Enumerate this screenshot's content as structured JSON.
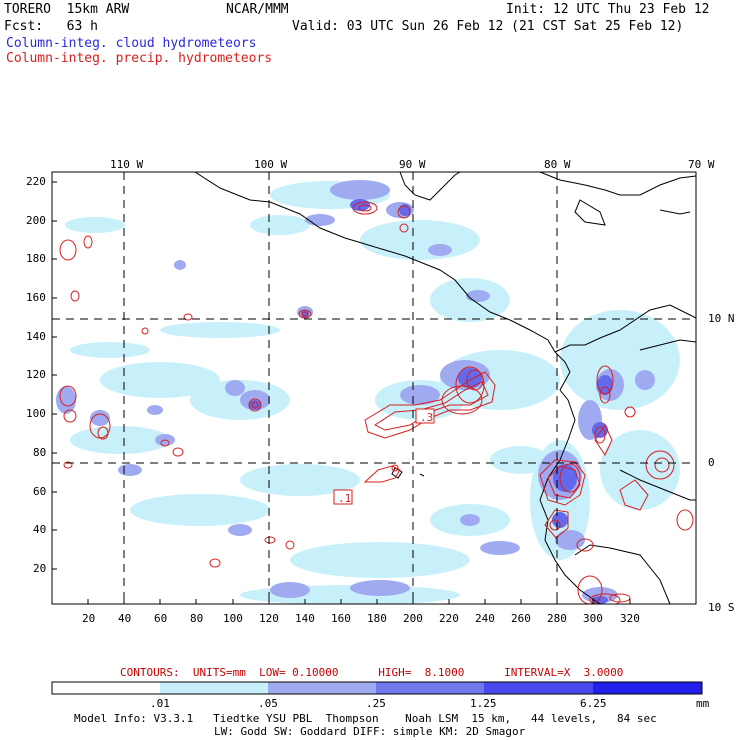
{
  "header": {
    "model": "TORERO  15km ARW",
    "org": "NCAR/MMM",
    "init": "Init: 12 UTC Thu 23 Feb 12",
    "fcst": "Fcst:   63 h",
    "valid": "Valid: 03 UTC Sun 26 Feb 12 (21 CST Sat 25 Feb 12)",
    "field1": "Column-integ. cloud hydrometeors",
    "field2": "Column-integ. precip. hydrometeors"
  },
  "axes": {
    "lon_labels": [
      "110 W",
      "100 W",
      "90 W",
      "80 W",
      "70 W"
    ],
    "lat_labels": [
      "10 N",
      "0",
      "10 S"
    ],
    "y_ticks": [
      "220",
      "200",
      "180",
      "160",
      "140",
      "120",
      "100",
      "80",
      "60",
      "40",
      "20"
    ],
    "x_ticks": [
      "20",
      "40",
      "60",
      "80",
      "100",
      "120",
      "140",
      "160",
      "180",
      "200",
      "220",
      "240",
      "260",
      "280",
      "300",
      "320"
    ]
  },
  "boxes": [
    ".1",
    ".3"
  ],
  "contours_line": {
    "label": "CONTOURS:  UNITS=mm  LOW= 0.10000      HIGH=  8.1000      INTERVAL=X  3.0000"
  },
  "colorbar": {
    "levels": [
      ".01",
      ".05",
      ".25",
      "1.25",
      "6.25"
    ],
    "unit": "mm",
    "colors": [
      "#ffffff",
      "#c8f0fa",
      "#a0aaf0",
      "#7478ee",
      "#4848ee",
      "#2020e8"
    ]
  },
  "footer": {
    "line1": "Model Info: V3.3.1   Tiedtke YSU PBL  Thompson    Noah LSM  15 km,   44 levels,   84 sec",
    "line2": "LW: Godd SW: Goddard DIFF: simple KM: 2D Smagor"
  }
}
